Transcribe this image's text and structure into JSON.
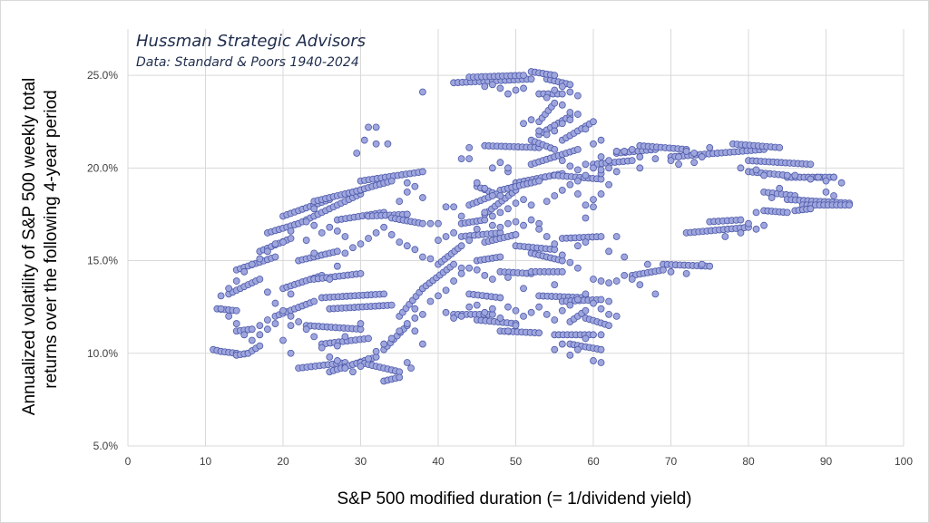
{
  "chart_data": {
    "type": "scatter",
    "annotations": [
      "Hussman Strategic Advisors",
      "Data: Standard & Poors 1940-2024"
    ],
    "xlabel": "S&P 500 modified duration (= 1/dividend yield)",
    "ylabel": [
      "Annualized volatility of S&P 500 weekly total",
      "returns over the following 4-year period"
    ],
    "xlim": [
      0,
      100
    ],
    "ylim": [
      5,
      27.5
    ],
    "x_ticks": [
      0,
      10,
      20,
      30,
      40,
      50,
      60,
      70,
      80,
      90,
      100
    ],
    "y_ticks": [
      5,
      10,
      15,
      20,
      25
    ],
    "x_tick_labels": [
      "0",
      "10",
      "20",
      "30",
      "40",
      "50",
      "60",
      "70",
      "80",
      "90",
      "100"
    ],
    "y_tick_labels": [
      "5.0%",
      "10.0%",
      "15.0%",
      "20.0%",
      "25.0%"
    ],
    "grid": true,
    "marker_color": "#9fa6de",
    "marker_edge_color": "#4d5aa8",
    "segments": [
      [
        11,
        10.2,
        12,
        10.1
      ],
      [
        12,
        10.1,
        14,
        10.0
      ],
      [
        14,
        9.9,
        15.5,
        10.0
      ],
      [
        15.5,
        10.0,
        17,
        10.4
      ],
      [
        11.5,
        12.4,
        14,
        12.3
      ],
      [
        14,
        11.2,
        16,
        11.3
      ],
      [
        13,
        13.2,
        17,
        14.0
      ],
      [
        14,
        14.5,
        19,
        15.2
      ],
      [
        17,
        15.5,
        21,
        16.2
      ],
      [
        18,
        16.5,
        22,
        17.0
      ],
      [
        19,
        12.0,
        24,
        12.8
      ],
      [
        20,
        13.5,
        25,
        14.2
      ],
      [
        20,
        17.4,
        26,
        18.3
      ],
      [
        22,
        17.0,
        30,
        18.6
      ],
      [
        24,
        18.2,
        30,
        18.8
      ],
      [
        30,
        19.3,
        38,
        19.8
      ],
      [
        29,
        18.7,
        34,
        19.3
      ],
      [
        27,
        17.2,
        33,
        17.6
      ],
      [
        31,
        17.4,
        36,
        17.5
      ],
      [
        34,
        17.3,
        38,
        17.0
      ],
      [
        22,
        15.0,
        27,
        15.5
      ],
      [
        24,
        14.0,
        30,
        14.3
      ],
      [
        25,
        13.0,
        33,
        13.2
      ],
      [
        26,
        12.4,
        34,
        12.6
      ],
      [
        23,
        11.5,
        30,
        11.3
      ],
      [
        25,
        10.5,
        31,
        10.8
      ],
      [
        22,
        9.2,
        28,
        9.5
      ],
      [
        26,
        9.0,
        32,
        9.8
      ],
      [
        30,
        9.5,
        35,
        9.0
      ],
      [
        33,
        10.2,
        36,
        11.5
      ],
      [
        33,
        8.5,
        35,
        8.7
      ],
      [
        35,
        12.0,
        38,
        13.5
      ],
      [
        38,
        13.5,
        42,
        14.8
      ],
      [
        40,
        14.8,
        43,
        15.8
      ],
      [
        43,
        16.3,
        48,
        16.5
      ],
      [
        43,
        17.0,
        46,
        17.2
      ],
      [
        46,
        17.5,
        50,
        18.8
      ],
      [
        50,
        19.2,
        56,
        19.7
      ],
      [
        48,
        18.8,
        53,
        19.3
      ],
      [
        55,
        19.6,
        61,
        19.4
      ],
      [
        52,
        20.2,
        58,
        21.0
      ],
      [
        56,
        21.5,
        60,
        22.5
      ],
      [
        53,
        21.8,
        57,
        22.8
      ],
      [
        53,
        22.5,
        55,
        23.5
      ],
      [
        53,
        24.0,
        56,
        24.0
      ],
      [
        54,
        24.8,
        57,
        24.5
      ],
      [
        52,
        25.2,
        55,
        25.0
      ],
      [
        42,
        24.6,
        52,
        24.8
      ],
      [
        44,
        24.9,
        51,
        25.0
      ],
      [
        46,
        21.2,
        53,
        21.1
      ],
      [
        52,
        21.5,
        55,
        21.0
      ],
      [
        45,
        19.0,
        48,
        18.5
      ],
      [
        44,
        18.0,
        47,
        18.5
      ],
      [
        45,
        15.0,
        48,
        15.2
      ],
      [
        46,
        16.0,
        50,
        16.4
      ],
      [
        50,
        15.8,
        55,
        15.6
      ],
      [
        52,
        15.4,
        56,
        15.0
      ],
      [
        48,
        14.4,
        52,
        14.3
      ],
      [
        52,
        14.4,
        56,
        14.4
      ],
      [
        56,
        16.2,
        61,
        16.3
      ],
      [
        53,
        13.1,
        59,
        13.0
      ],
      [
        56,
        12.8,
        61,
        12.9
      ],
      [
        42,
        12.1,
        47,
        12.1
      ],
      [
        44,
        13.2,
        48,
        13.0
      ],
      [
        45,
        11.8,
        50,
        11.6
      ],
      [
        48,
        11.2,
        53,
        11.1
      ],
      [
        55,
        11.0,
        60,
        11.0
      ],
      [
        57,
        10.5,
        61,
        10.2
      ],
      [
        57,
        11.7,
        59,
        12.3
      ],
      [
        59,
        11.9,
        62,
        11.5
      ],
      [
        60,
        20.2,
        65,
        20.4
      ],
      [
        63,
        20.8,
        68,
        21.0
      ],
      [
        66,
        21.2,
        72,
        21.0
      ],
      [
        70,
        20.6,
        76,
        20.8
      ],
      [
        76,
        20.8,
        82,
        21.0
      ],
      [
        78,
        21.3,
        84,
        21.1
      ],
      [
        80,
        20.4,
        88,
        20.2
      ],
      [
        85,
        19.5,
        91,
        19.5
      ],
      [
        82,
        18.7,
        86,
        18.5
      ],
      [
        85,
        18.3,
        93,
        18.1
      ],
      [
        87,
        18.0,
        93,
        18.0
      ],
      [
        82,
        17.7,
        85,
        17.6
      ],
      [
        86,
        17.7,
        88,
        17.8
      ],
      [
        72,
        16.5,
        80,
        16.8
      ],
      [
        75,
        17.1,
        79,
        17.2
      ],
      [
        69,
        14.8,
        75,
        14.7
      ],
      [
        65,
        14.2,
        69,
        14.5
      ],
      [
        80,
        19.8,
        85,
        19.6
      ]
    ],
    "points": [
      [
        38,
        24.1
      ],
      [
        29.5,
        20.8
      ],
      [
        31,
        22.2
      ],
      [
        32,
        22.2
      ],
      [
        30.5,
        21.5
      ],
      [
        32,
        21.3
      ],
      [
        33.5,
        21.3
      ],
      [
        36,
        18.7
      ],
      [
        38,
        18.4
      ],
      [
        39,
        17.0
      ],
      [
        40,
        17.0
      ],
      [
        40,
        16.1
      ],
      [
        41,
        16.3
      ],
      [
        44,
        20.5
      ],
      [
        44,
        21.1
      ],
      [
        43,
        20.5
      ],
      [
        46,
        18.9
      ],
      [
        49,
        19.8
      ],
      [
        45,
        19.2
      ],
      [
        42,
        17.9
      ],
      [
        41,
        17.9
      ],
      [
        42,
        16.5
      ],
      [
        43,
        14.6
      ],
      [
        49,
        14.1
      ],
      [
        38,
        10.5
      ],
      [
        37,
        11.2
      ],
      [
        36,
        9.5
      ],
      [
        36.5,
        9.2
      ],
      [
        37,
        12.4
      ],
      [
        28,
        10.9
      ],
      [
        27,
        10.4
      ],
      [
        30,
        11.6
      ],
      [
        21,
        10.0
      ],
      [
        20,
        10.7
      ],
      [
        21,
        11.5
      ],
      [
        19,
        11.6
      ],
      [
        37,
        19.0
      ],
      [
        36,
        19.2
      ],
      [
        35,
        18.2
      ],
      [
        24,
        15.4
      ],
      [
        23,
        16.1
      ],
      [
        26,
        14.0
      ],
      [
        21,
        13.2
      ],
      [
        28,
        15.4
      ],
      [
        24,
        17.8
      ],
      [
        27,
        14.7
      ],
      [
        18,
        13.3
      ],
      [
        19,
        12.7
      ],
      [
        17,
        11.5
      ],
      [
        18,
        11.3
      ],
      [
        60,
        14.0
      ],
      [
        61,
        13.9
      ],
      [
        62,
        13.8
      ],
      [
        63,
        13.9
      ],
      [
        64,
        14.2
      ],
      [
        65,
        14.0
      ],
      [
        67,
        14.8
      ],
      [
        70,
        14.4
      ],
      [
        72,
        14.3
      ],
      [
        74,
        14.8
      ],
      [
        68,
        13.2
      ],
      [
        62,
        12.8
      ],
      [
        63,
        12.0
      ],
      [
        61,
        11.0
      ],
      [
        59,
        10.8
      ],
      [
        58,
        10.2
      ],
      [
        56,
        10.5
      ],
      [
        55,
        10.2
      ],
      [
        57,
        9.9
      ],
      [
        60,
        9.6
      ],
      [
        61,
        9.5
      ],
      [
        52,
        12.2
      ],
      [
        51,
        13.5
      ],
      [
        55,
        13.7
      ],
      [
        58,
        15.8
      ],
      [
        59,
        16.0
      ],
      [
        62,
        15.5
      ],
      [
        63,
        16.3
      ],
      [
        64,
        15.2
      ],
      [
        66,
        13.7
      ],
      [
        60,
        17.9
      ],
      [
        59,
        17.3
      ],
      [
        58,
        18.6
      ],
      [
        61,
        19.7
      ],
      [
        62,
        20.0
      ],
      [
        63,
        19.8
      ],
      [
        63,
        20.9
      ],
      [
        61,
        21.5
      ],
      [
        66,
        20.0
      ],
      [
        68,
        20.5
      ],
      [
        71,
        20.6
      ],
      [
        73,
        20.3
      ],
      [
        77,
        16.3
      ],
      [
        79,
        16.5
      ],
      [
        81,
        16.7
      ],
      [
        82,
        16.9
      ],
      [
        83,
        18.4
      ],
      [
        84,
        18.9
      ],
      [
        86,
        19.6
      ],
      [
        88,
        19.4
      ],
      [
        89,
        19.5
      ],
      [
        90,
        19.3
      ],
      [
        91,
        19.5
      ],
      [
        92,
        19.2
      ],
      [
        90,
        18.7
      ],
      [
        91,
        18.5
      ],
      [
        81,
        17.6
      ],
      [
        80,
        17.0
      ],
      [
        79,
        20.0
      ],
      [
        81,
        19.9
      ],
      [
        82,
        19.6
      ],
      [
        75,
        21.1
      ],
      [
        74,
        20.6
      ],
      [
        73,
        20.8
      ],
      [
        72,
        20.9
      ],
      [
        70,
        20.4
      ],
      [
        71,
        20.2
      ],
      [
        65,
        21.0
      ],
      [
        64,
        20.9
      ],
      [
        66,
        20.6
      ],
      [
        52,
        22.6
      ],
      [
        51,
        22.4
      ],
      [
        53,
        22.0
      ],
      [
        55,
        22.3
      ],
      [
        56,
        23.4
      ],
      [
        57,
        23.0
      ],
      [
        57,
        20.1
      ],
      [
        56,
        20.4
      ],
      [
        58,
        19.9
      ],
      [
        59,
        20.2
      ],
      [
        60,
        20.0
      ],
      [
        61,
        19.9
      ],
      [
        47,
        20.0
      ],
      [
        48,
        20.3
      ],
      [
        49,
        20.0
      ],
      [
        47,
        16.9
      ],
      [
        48,
        16.8
      ],
      [
        49,
        17.0
      ],
      [
        50,
        17.1
      ],
      [
        51,
        16.9
      ],
      [
        52,
        17.2
      ],
      [
        53,
        17.0
      ],
      [
        45,
        16.7
      ],
      [
        46,
        17.6
      ],
      [
        43,
        17.4
      ],
      [
        44,
        16.1
      ],
      [
        39,
        15.1
      ],
      [
        38,
        15.2
      ],
      [
        37,
        15.6
      ],
      [
        36,
        15.8
      ],
      [
        35,
        16.0
      ],
      [
        34,
        16.4
      ],
      [
        33,
        16.8
      ],
      [
        32,
        16.5
      ],
      [
        31,
        16.2
      ],
      [
        30,
        15.9
      ],
      [
        29,
        15.7
      ],
      [
        28,
        16.3
      ],
      [
        27,
        16.6
      ],
      [
        26,
        16.8
      ],
      [
        25,
        16.5
      ],
      [
        24,
        16.9
      ],
      [
        23,
        17.1
      ],
      [
        21,
        16.6
      ],
      [
        20,
        16.0
      ],
      [
        19,
        15.9
      ],
      [
        18,
        15.5
      ],
      [
        17,
        15.1
      ],
      [
        16,
        14.8
      ],
      [
        15,
        14.4
      ],
      [
        14,
        13.9
      ],
      [
        13,
        13.5
      ],
      [
        12,
        13.1
      ],
      [
        12,
        12.4
      ],
      [
        13,
        12.0
      ],
      [
        14,
        11.6
      ],
      [
        15,
        11.0
      ],
      [
        16,
        10.7
      ],
      [
        17,
        11.0
      ],
      [
        18,
        11.8
      ],
      [
        20,
        12.3
      ],
      [
        21,
        12.0
      ],
      [
        22,
        11.7
      ],
      [
        23,
        11.3
      ],
      [
        24,
        10.9
      ],
      [
        25,
        10.3
      ],
      [
        26,
        9.8
      ],
      [
        27,
        9.6
      ],
      [
        28,
        9.2
      ],
      [
        29,
        9.0
      ],
      [
        30,
        9.3
      ],
      [
        31,
        9.7
      ],
      [
        32,
        10.1
      ],
      [
        33,
        10.5
      ],
      [
        34,
        10.8
      ],
      [
        35,
        11.2
      ],
      [
        36,
        11.6
      ],
      [
        37,
        11.9
      ],
      [
        38,
        12.1
      ],
      [
        39,
        12.8
      ],
      [
        40,
        13.1
      ],
      [
        41,
        13.4
      ],
      [
        42,
        13.9
      ],
      [
        43,
        14.3
      ],
      [
        44,
        14.6
      ],
      [
        45,
        14.5
      ],
      [
        46,
        14.2
      ],
      [
        47,
        14.0
      ],
      [
        49,
        12.5
      ],
      [
        50,
        12.3
      ],
      [
        51,
        12.0
      ],
      [
        50,
        11.5
      ],
      [
        49,
        11.2
      ],
      [
        48,
        11.9
      ],
      [
        47,
        12.4
      ],
      [
        46,
        12.2
      ],
      [
        45,
        12.6
      ],
      [
        44,
        12.5
      ],
      [
        43,
        12.0
      ],
      [
        42,
        11.9
      ],
      [
        41,
        12.2
      ],
      [
        53,
        12.5
      ],
      [
        54,
        12.1
      ],
      [
        55,
        11.8
      ],
      [
        56,
        12.3
      ],
      [
        57,
        12.6
      ],
      [
        58,
        12.9
      ],
      [
        59,
        13.2
      ],
      [
        60,
        12.7
      ],
      [
        61,
        12.4
      ],
      [
        62,
        12.1
      ],
      [
        58,
        14.6
      ],
      [
        57,
        14.9
      ],
      [
        56,
        15.3
      ],
      [
        55,
        15.9
      ],
      [
        54,
        16.3
      ],
      [
        53,
        16.7
      ],
      [
        52,
        18.0
      ],
      [
        51,
        18.3
      ],
      [
        50,
        18.1
      ],
      [
        49,
        17.8
      ],
      [
        48,
        17.6
      ],
      [
        47,
        17.4
      ],
      [
        54,
        18.2
      ],
      [
        55,
        18.5
      ],
      [
        56,
        18.8
      ],
      [
        57,
        19.1
      ],
      [
        58,
        19.3
      ],
      [
        59,
        19.6
      ],
      [
        54,
        21.8
      ],
      [
        55,
        22.0
      ],
      [
        56,
        22.4
      ],
      [
        57,
        22.6
      ],
      [
        58,
        22.9
      ],
      [
        59,
        22.1
      ],
      [
        60,
        21.3
      ],
      [
        61,
        20.6
      ],
      [
        62,
        20.4
      ],
      [
        62,
        19.1
      ],
      [
        61,
        18.6
      ],
      [
        60,
        18.3
      ],
      [
        59,
        18.0
      ],
      [
        54,
        23.8
      ],
      [
        55,
        24.2
      ],
      [
        56,
        24.4
      ],
      [
        57,
        24.1
      ],
      [
        58,
        23.9
      ],
      [
        51,
        24.3
      ],
      [
        50,
        24.2
      ],
      [
        49,
        24.0
      ],
      [
        48,
        24.3
      ],
      [
        47,
        24.5
      ],
      [
        46,
        24.4
      ]
    ]
  }
}
